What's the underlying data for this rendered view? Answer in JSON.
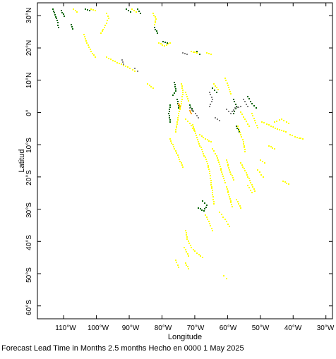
{
  "map": {
    "x_axis_title": "Longitude",
    "y_axis_title": "Latitud",
    "lon_labels": [
      "110°W",
      "100°W",
      "90°W",
      "80°W",
      "70°W",
      "60°W",
      "50°W",
      "40°W",
      "30°W"
    ],
    "lat_labels": [
      "30°N",
      "20°N",
      "10°N",
      "0°",
      "10°S",
      "20°S",
      "30°S",
      "40°S",
      "50°S",
      "60°S"
    ],
    "lon_range": [
      -118,
      -28
    ],
    "lat_range": [
      -64,
      34
    ],
    "colors": {
      "yellow": "#ffff00",
      "dark_green": "#006400",
      "gray": "#808080",
      "orange": "#ffa500"
    }
  },
  "footer": {
    "caption": "Forecast Lead Time in Months 2.5 months Hecho en 0000 1 May 2025"
  }
}
